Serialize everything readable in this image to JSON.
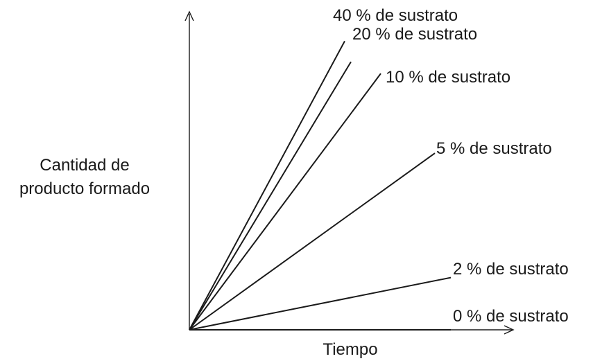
{
  "chart_data": {
    "type": "line",
    "title": "",
    "xlabel": "Tiempo",
    "ylabel_lines": [
      "Cantidad de",
      "producto formado"
    ],
    "grid": false,
    "legend": "none; series labelled at line ends",
    "series": [
      {
        "name": "40 % de sustrato",
        "slope": 1.86
      },
      {
        "name": "20 % de sustrato",
        "slope": 1.66
      },
      {
        "name": "10 % de sustrato",
        "slope": 1.34
      },
      {
        "name": "5 % de sustrato",
        "slope": 0.72
      },
      {
        "name": "2 % de sustrato",
        "slope": 0.2
      },
      {
        "name": "0 % de sustrato",
        "slope": 0.0
      }
    ]
  }
}
